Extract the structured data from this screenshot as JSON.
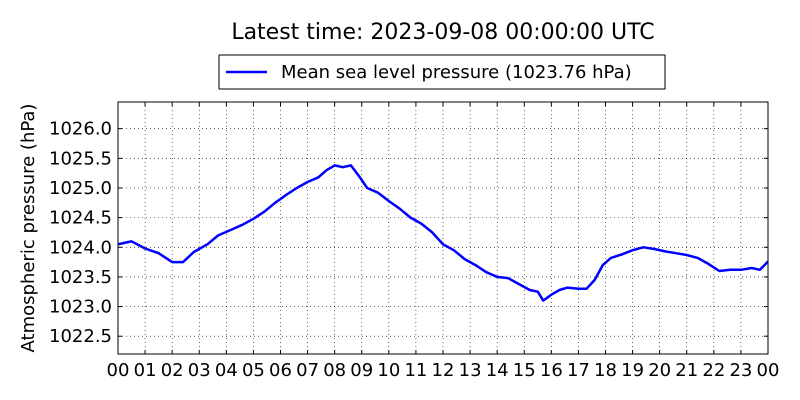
{
  "chart_data": {
    "type": "line",
    "title": "Latest time: 2023-09-08 00:00:00 UTC",
    "xlabel": "",
    "ylabel": "Atmospheric pressure (hPa)",
    "x_ticks": [
      "00",
      "01",
      "02",
      "03",
      "04",
      "05",
      "06",
      "07",
      "08",
      "09",
      "10",
      "11",
      "12",
      "13",
      "14",
      "15",
      "16",
      "17",
      "18",
      "19",
      "20",
      "21",
      "22",
      "23",
      "00"
    ],
    "xlim": [
      0,
      24
    ],
    "ylim": [
      1022.2,
      1026.45
    ],
    "y_ticks": [
      "1022.5",
      "1023.0",
      "1023.5",
      "1024.0",
      "1024.5",
      "1025.0",
      "1025.5",
      "1026.0"
    ],
    "grid": true,
    "legend_position": "top-center",
    "series": [
      {
        "name": "Mean sea level pressure (1023.76 hPa)",
        "color": "#0000ff",
        "x": [
          0,
          0.5,
          1,
          1.5,
          2,
          2.4,
          2.8,
          3.3,
          3.7,
          4.2,
          4.6,
          5,
          5.4,
          5.8,
          6.2,
          6.6,
          7,
          7.4,
          7.7,
          8,
          8.3,
          8.6,
          8.9,
          9.2,
          9.6,
          10,
          10.4,
          10.8,
          11.2,
          11.6,
          12,
          12.4,
          12.8,
          13.2,
          13.6,
          14,
          14.4,
          14.8,
          15.2,
          15.5,
          15.7,
          16,
          16.3,
          16.6,
          17,
          17.3,
          17.6,
          17.9,
          18.2,
          18.6,
          19,
          19.4,
          19.8,
          20.2,
          20.6,
          21,
          21.4,
          21.8,
          22.2,
          22.6,
          23,
          23.4,
          23.7,
          24
        ],
        "y": [
          1024.05,
          1024.1,
          1023.98,
          1023.9,
          1023.75,
          1023.75,
          1023.92,
          1024.05,
          1024.2,
          1024.3,
          1024.38,
          1024.48,
          1024.6,
          1024.75,
          1024.88,
          1025.0,
          1025.1,
          1025.18,
          1025.3,
          1025.38,
          1025.35,
          1025.38,
          1025.2,
          1025.0,
          1024.92,
          1024.78,
          1024.65,
          1024.5,
          1024.4,
          1024.25,
          1024.05,
          1023.95,
          1023.8,
          1023.7,
          1023.58,
          1023.5,
          1023.48,
          1023.38,
          1023.28,
          1023.25,
          1023.1,
          1023.2,
          1023.28,
          1023.32,
          1023.3,
          1023.3,
          1023.45,
          1023.7,
          1023.82,
          1023.88,
          1023.95,
          1024.0,
          1023.97,
          1023.93,
          1023.9,
          1023.87,
          1023.82,
          1023.72,
          1023.6,
          1023.62,
          1023.62,
          1023.65,
          1023.62,
          1023.76
        ]
      }
    ]
  }
}
